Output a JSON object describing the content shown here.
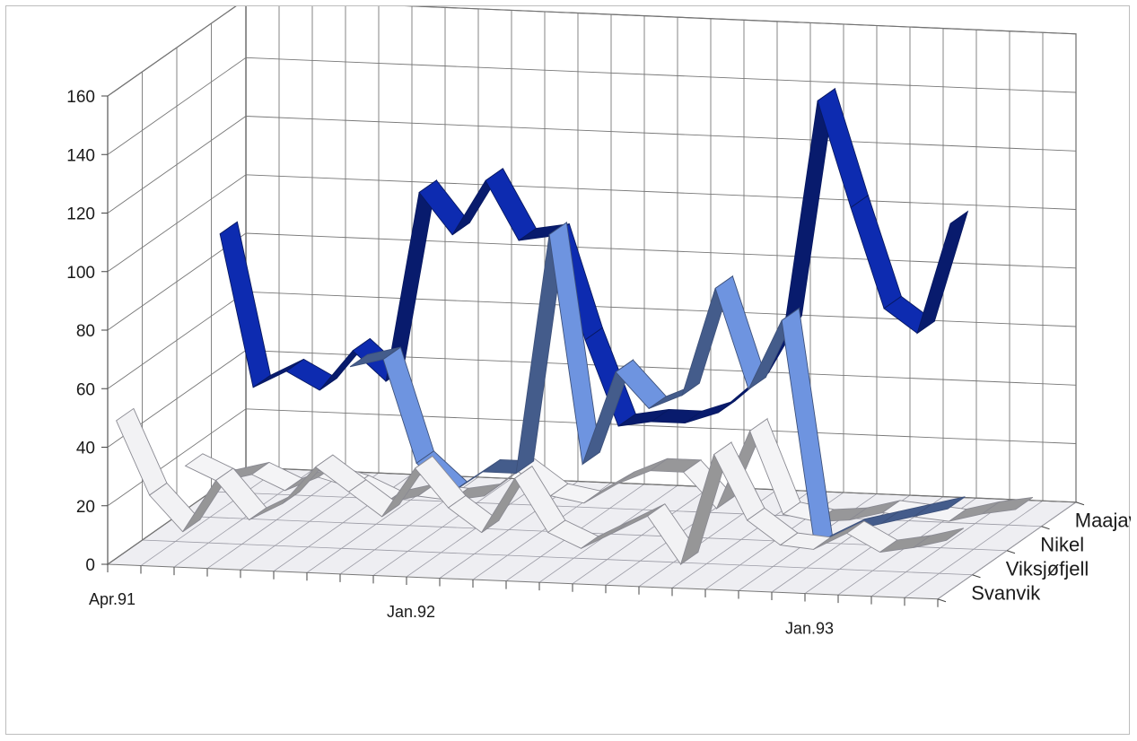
{
  "chart_data": {
    "type": "line",
    "variant": "3d-ribbon",
    "title": "",
    "ylim": [
      0,
      160
    ],
    "yticks": [
      0,
      20,
      40,
      60,
      80,
      100,
      120,
      140,
      160
    ],
    "grid": true,
    "x_tick_labels": [
      {
        "label": "Apr.91",
        "index": 0
      },
      {
        "label": "Jan.92",
        "index": 9
      },
      {
        "label": "Jan.93",
        "index": 21
      }
    ],
    "series": [
      {
        "name": "Svanvik",
        "color": "#f2f2f4",
        "values": [
          47,
          22,
          10,
          28,
          15,
          21,
          34,
          26,
          18,
          35,
          22,
          14,
          33,
          15,
          10,
          16,
          22,
          6,
          44,
          22,
          14,
          13,
          19,
          13,
          15,
          18
        ]
      },
      {
        "name": "Viksjøfjell",
        "color": "#6e94e0",
        "values": [
          null,
          null,
          null,
          null,
          null,
          null,
          60,
          63,
          28,
          18,
          26,
          26,
          108,
          30,
          62,
          50,
          55,
          92,
          58,
          82,
          5,
          11,
          14,
          17,
          20,
          null
        ]
      },
      {
        "name": "Nikel",
        "color": "#f4f4f6",
        "values": [
          15,
          10,
          13,
          8,
          13,
          10,
          5,
          8,
          7,
          9,
          18,
          10,
          8,
          15,
          20,
          20,
          8,
          35,
          7,
          5,
          6,
          9,
          8,
          7,
          10,
          12
        ]
      },
      {
        "name": "Maajavri",
        "color": "#0d2bb0",
        "values": [
          86,
          34,
          40,
          34,
          48,
          38,
          103,
          89,
          108,
          88,
          90,
          55,
          26,
          28,
          28,
          32,
          42,
          62,
          140,
          104,
          70,
          62,
          100,
          null,
          null,
          null
        ]
      }
    ]
  }
}
